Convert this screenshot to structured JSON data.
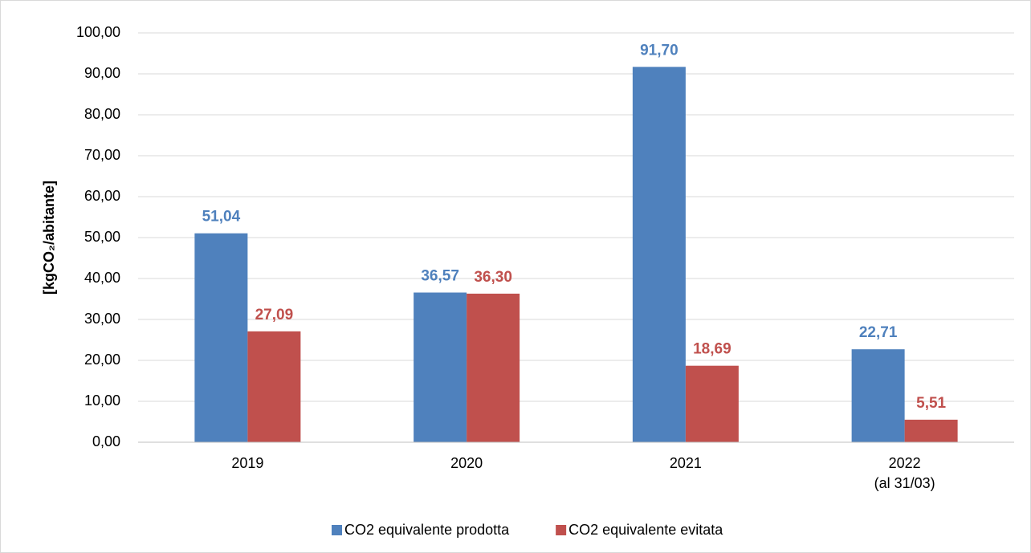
{
  "chart_data": {
    "type": "bar",
    "y_axis_label": "[kgCO₂/abitante]",
    "categories": [
      "2019",
      "2020",
      "2021",
      "2022\n(al 31/03)"
    ],
    "series": [
      {
        "name": "CO2 equivalente prodotta",
        "color": "#4f81bd",
        "values": [
          51.04,
          36.57,
          91.7,
          22.71
        ],
        "value_labels": [
          "51,04",
          "36,57",
          "91,70",
          "22,71"
        ]
      },
      {
        "name": "CO2 equivalente evitata",
        "color": "#c0504d",
        "values": [
          27.09,
          36.3,
          18.69,
          5.51
        ],
        "value_labels": [
          "27,09",
          "36,30",
          "18,69",
          "5,51"
        ]
      }
    ],
    "ylim": [
      0,
      100
    ],
    "yticks": [
      {
        "value": 0,
        "label": "0,00"
      },
      {
        "value": 10,
        "label": "10,00"
      },
      {
        "value": 20,
        "label": "20,00"
      },
      {
        "value": 30,
        "label": "30,00"
      },
      {
        "value": 40,
        "label": "40,00"
      },
      {
        "value": 50,
        "label": "50,00"
      },
      {
        "value": 60,
        "label": "60,00"
      },
      {
        "value": 70,
        "label": "70,00"
      },
      {
        "value": 80,
        "label": "80,00"
      },
      {
        "value": 90,
        "label": "90,00"
      },
      {
        "value": 100,
        "label": "100,00"
      }
    ],
    "grid": true,
    "legend": "bottom"
  }
}
